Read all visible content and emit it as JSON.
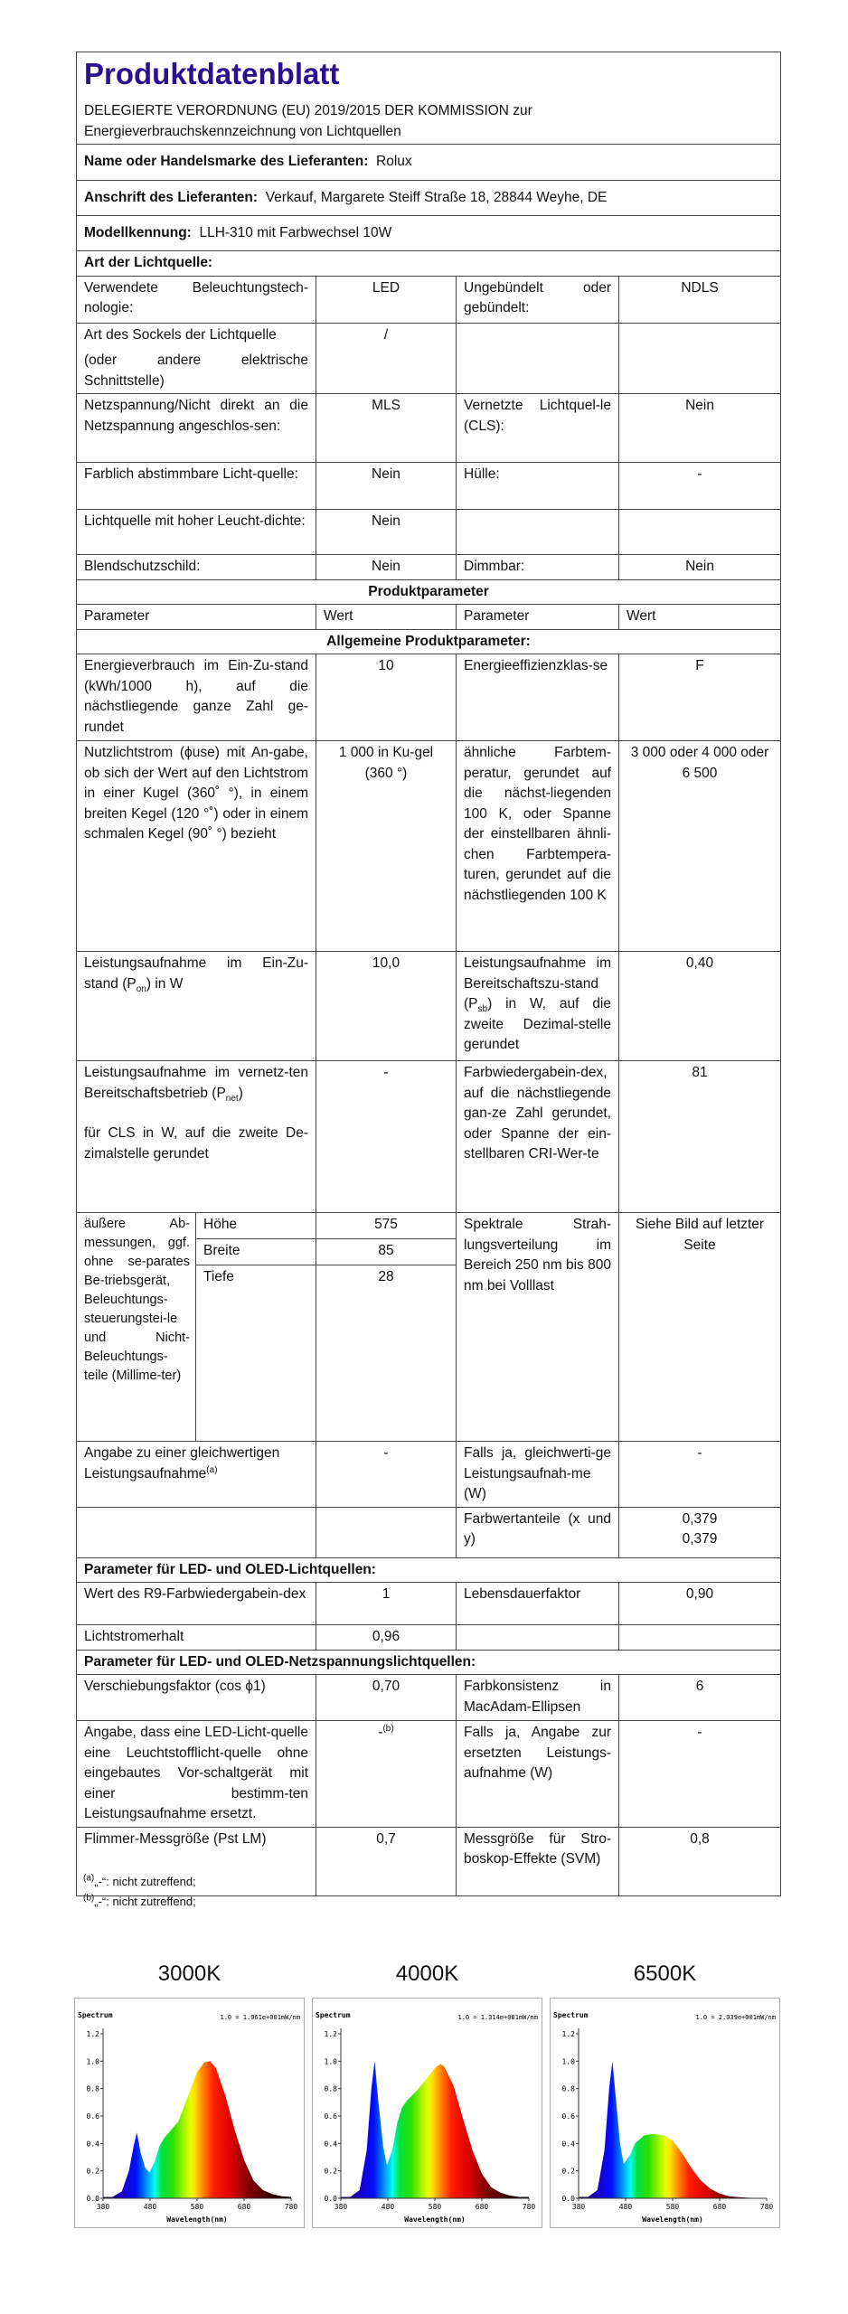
{
  "header": {
    "title": "Produktdatenblatt",
    "regulation_1": "DELEGIERTE VERORDNUNG (EU) 2019/2015 DER KOMMISSION zur",
    "regulation_2": "Energieverbrauchskennzeichnung von Lichtquellen"
  },
  "supplier": {
    "name_label": "Name oder Handelsmarke des Lieferanten:",
    "name_value": "Rolux",
    "address_label": "Anschrift des Lieferanten:",
    "address_value": "Verkauf, Margarete Steiff Straße 18, 28844 Weyhe, DE",
    "model_label": "Modellkennung:",
    "model_value": "LLH-310 mit Farbwechsel 10W"
  },
  "art": {
    "heading": "Art der Lichtquelle:",
    "r1": {
      "p1": "Verwendete Beleuchtungstech-nologie:",
      "v1": "LED",
      "p2": "Ungebündelt oder gebündelt:",
      "v2": "NDLS"
    },
    "r2": {
      "p1a": "Art des Sockels der Lichtquelle",
      "p1b": "(oder andere elektrische Schnittstelle)",
      "v1": "/"
    },
    "r3": {
      "p1": "Netzspannung/Nicht direkt an die Netzspannung angeschlos-sen:",
      "v1": "MLS",
      "p2": "Vernetzte Lichtquel-le (CLS):",
      "v2": "Nein"
    },
    "r4": {
      "p1": "Farblich abstimmbare Licht-quelle:",
      "v1": "Nein",
      "p2": "Hülle:",
      "v2": "-"
    },
    "r5": {
      "p1": "Lichtquelle mit hoher Leucht-dichte:",
      "v1": "Nein"
    },
    "r6": {
      "p1": "Blendschutzschild:",
      "v1": "Nein",
      "p2": "Dimmbar:",
      "v2": "Nein"
    }
  },
  "params": {
    "heading": "Produktparameter",
    "col_param": "Parameter",
    "col_value": "Wert",
    "general_heading": "Allgemeine Produktparameter:",
    "energy": {
      "p1": "Energieverbrauch im Ein-Zu-stand (kWh/1000 h), auf die nächstliegende ganze Zahl ge-rundet",
      "v1": "10",
      "p2": "Energieeffizienzklas-se",
      "v2": "F"
    },
    "flux": {
      "p1": "Nutzlichtstrom (ϕuse) mit An-gabe, ob sich der Wert auf den Lichtstrom in einer Kugel (360˚ °), in einem breiten Kegel (120 °˚) oder in einem schmalen Kegel (90˚ °) bezieht",
      "v1": "1 000 in Ku-gel (360 °)",
      "p2": "ähnliche Farbtem-peratur, gerundet auf die nächst-liegenden 100 K, oder Spanne der einstellbaren ähnli-chen Farbtempera-turen, gerundet auf die nächstliegenden 100 K",
      "v2": "3 000 oder 4 000 oder 6 500"
    },
    "power": {
      "p1a": "Leistungsaufnahme im Ein-Zu-stand (P",
      "p1sub": "on",
      "p1b": ") in W",
      "v1": "10,0",
      "p2a": "Leistungsaufnahme im Bereitschaftszu-stand (P",
      "p2sub": "sb",
      "p2b": ") in W, auf die zweite Dezimal-stelle gerundet",
      "v2": "0,40"
    },
    "network": {
      "p1a": "Leistungsaufnahme im vernetz-ten Bereitschaftsbetrieb (P",
      "p1sub": "net",
      "p1b": ")",
      "p1c": "für CLS in W, auf die zweite De-zimalstelle gerundet",
      "v1": "-",
      "p2": "Farbwiedergabein-dex, auf die nächstliegende gan-ze Zahl gerundet, oder Spanne der ein-stellbaren CRI-Wer-te",
      "v2": "81"
    },
    "dims": {
      "p1": "äußere Ab-messungen, ggf. ohne se-parates Be-triebsgerät, Beleuchtungs-steuerungstei-le und Nicht-Beleuchtungs-teile (Millime-ter)",
      "h_label": "Höhe",
      "h": "575",
      "w_label": "Breite",
      "w": "85",
      "d_label": "Tiefe",
      "d": "28",
      "p2": "Spektrale Strah-lungsverteilung im Bereich 250 nm bis 800 nm bei Volllast",
      "v2": "Siehe Bild auf letzter Seite"
    },
    "equiv": {
      "p1": "Angabe zu einer gleichwertigen Leistungsaufnahme",
      "p1sup": "(a)",
      "v1": "-",
      "p2": "Falls ja, gleichwerti-ge Leistungsaufnah-me (W)",
      "v2": "-"
    },
    "chroma": {
      "p2": "Farbwertanteile (x und y)",
      "x": "0,379",
      "y": "0,379"
    },
    "led_heading": "Parameter für LED- und OLED-Lichtquellen:",
    "r9": {
      "p1": "Wert des R9-Farbwiedergabein-dex",
      "v1": "1",
      "p2": "Lebensdauerfaktor",
      "v2": "0,90"
    },
    "maint": {
      "p1": "Lichtstromerhalt",
      "v1": "0,96"
    },
    "mains_heading": "Parameter für LED- und OLED-Netzspannungslichtquellen:",
    "shift": {
      "p1": "Verschiebungsfaktor (cos ϕ1)",
      "v1": "0,70",
      "p2": "Farbkonsistenz in MacAdam-Ellipsen",
      "v2": "6"
    },
    "replace": {
      "p1": "Angabe, dass eine LED-Licht-quelle eine Leuchtstofflicht-quelle ohne eingebautes Vor-schaltgerät mit einer bestimm-ten Leistungsaufnahme ersetzt.",
      "v1": "-",
      "v1sup": "(b)",
      "p2": "Falls ja, Angabe zur ersetzten Leistungs-aufnahme (W)",
      "v2": "-"
    },
    "flicker": {
      "p1": "Flimmer-Messgröße (Pst LM)",
      "v1": "0,7",
      "p2": "Messgröße für Stro-boskop-Effekte (SVM)",
      "v2": "0,8"
    }
  },
  "footnotes": {
    "a_mark": "(a)",
    "a_text": "„-“: nicht zutreffend;",
    "b_mark": "(b)",
    "b_text": "„-“: nicht zutreffend;"
  },
  "chart_data": [
    {
      "type": "area",
      "title": "3000K",
      "ylabel": "Spectrum",
      "xlabel": "Wavelength(nm)",
      "annotation": "1.0 = 1.961e+001mW/nm",
      "xlim": [
        380,
        780
      ],
      "ylim": [
        0,
        1.2
      ],
      "xticks": [
        380,
        480,
        580,
        680,
        780
      ],
      "yticks": [
        0.0,
        0.2,
        0.4,
        0.6,
        0.8,
        1.0,
        1.2
      ],
      "x": [
        380,
        400,
        420,
        435,
        445,
        452,
        460,
        470,
        479,
        490,
        500,
        510,
        520,
        540,
        560,
        580,
        595,
        608,
        620,
        640,
        660,
        680,
        700,
        720,
        740,
        760,
        780
      ],
      "y": [
        0.01,
        0.01,
        0.05,
        0.2,
        0.38,
        0.48,
        0.33,
        0.22,
        0.19,
        0.27,
        0.38,
        0.44,
        0.48,
        0.56,
        0.74,
        0.92,
        0.99,
        1.0,
        0.95,
        0.75,
        0.5,
        0.28,
        0.13,
        0.06,
        0.03,
        0.015,
        0.01
      ]
    },
    {
      "type": "area",
      "title": "4000K",
      "ylabel": "Spectrum",
      "xlabel": "Wavelength(nm)",
      "annotation": "1.0 = 1.314e+001mW/nm",
      "xlim": [
        380,
        780
      ],
      "ylim": [
        0,
        1.2
      ],
      "xticks": [
        380,
        480,
        580,
        680,
        780
      ],
      "yticks": [
        0.0,
        0.2,
        0.4,
        0.6,
        0.8,
        1.0,
        1.2
      ],
      "x": [
        380,
        400,
        420,
        435,
        445,
        452,
        460,
        470,
        478,
        490,
        500,
        510,
        520,
        540,
        560,
        580,
        592,
        600,
        620,
        640,
        660,
        680,
        700,
        720,
        740,
        760,
        780
      ],
      "y": [
        0.01,
        0.01,
        0.06,
        0.35,
        0.8,
        1.0,
        0.7,
        0.38,
        0.24,
        0.36,
        0.55,
        0.66,
        0.71,
        0.78,
        0.86,
        0.95,
        0.98,
        0.96,
        0.82,
        0.58,
        0.35,
        0.18,
        0.08,
        0.04,
        0.02,
        0.01,
        0.01
      ]
    },
    {
      "type": "area",
      "title": "6500K",
      "ylabel": "Spectrum",
      "xlabel": "Wavelength(nm)",
      "annotation": "1.0 = 2.939e+001mW/nm",
      "xlim": [
        380,
        780
      ],
      "ylim": [
        0,
        1.2
      ],
      "xticks": [
        380,
        480,
        580,
        680,
        780
      ],
      "yticks": [
        0.0,
        0.2,
        0.4,
        0.6,
        0.8,
        1.0,
        1.2
      ],
      "x": [
        380,
        400,
        420,
        435,
        445,
        452,
        460,
        468,
        476,
        490,
        500,
        520,
        540,
        560,
        580,
        600,
        620,
        640,
        660,
        680,
        700,
        720,
        740,
        760,
        780
      ],
      "y": [
        0.01,
        0.01,
        0.06,
        0.35,
        0.8,
        1.0,
        0.7,
        0.4,
        0.25,
        0.32,
        0.4,
        0.46,
        0.47,
        0.46,
        0.42,
        0.33,
        0.22,
        0.13,
        0.07,
        0.035,
        0.015,
        0.008,
        0.004,
        0.002,
        0.001
      ]
    }
  ]
}
